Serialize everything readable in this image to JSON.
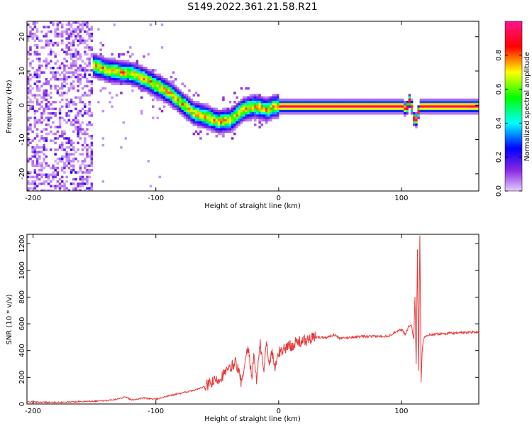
{
  "figure_title": "S149.2022.361.21.58.R21",
  "chart_data": [
    {
      "type": "heatmap",
      "title": "",
      "xlabel": "Height of straight line (km)",
      "ylabel": "Frequency (Hz)",
      "xlim": [
        -205,
        163
      ],
      "ylim": [
        -25,
        24.5
      ],
      "xticks": [
        -200,
        -100,
        0,
        100
      ],
      "yticks": [
        -20,
        -10,
        0,
        10,
        20
      ],
      "colorbar": {
        "label": "Normalized spectral amplitude",
        "range": [
          0.0,
          1.0
        ],
        "ticks": [
          0.0,
          0.2,
          0.4,
          0.6,
          0.8
        ],
        "colormap": [
          "#e6ccff",
          "#8a2be2",
          "#0000ff",
          "#00ffff",
          "#00ff00",
          "#ffff00",
          "#ff0000",
          "#ff1493"
        ]
      },
      "ridge": {
        "x": [
          -152,
          -140,
          -130,
          -120,
          -110,
          -100,
          -90,
          -80,
          -70,
          -60,
          -50,
          -40,
          -30,
          -20,
          -10,
          -5,
          0,
          20,
          40,
          60,
          80,
          95,
          100,
          103,
          106,
          108,
          110,
          112,
          114,
          120,
          140,
          163
        ],
        "frequency": [
          12,
          10.5,
          10,
          9.5,
          8,
          6,
          4,
          1,
          -2,
          -3,
          -4.5,
          -4,
          -1,
          0,
          -1,
          0,
          0,
          0,
          0,
          0,
          0,
          0,
          0,
          -1,
          2,
          -1,
          -5,
          -3,
          0,
          0,
          0,
          0
        ]
      }
    },
    {
      "type": "line",
      "title": "",
      "xlabel": "Height of straight line (km)",
      "ylabel": "SNR (10 * v/v)",
      "xlim": [
        -205,
        163
      ],
      "ylim": [
        0,
        1270
      ],
      "xticks": [
        -200,
        -100,
        0,
        100
      ],
      "yticks": [
        0,
        200,
        400,
        600,
        800,
        1000,
        1200
      ],
      "series": [
        {
          "color": "#e8393a",
          "x": [
            -205,
            -180,
            -160,
            -140,
            -130,
            -125,
            -120,
            -110,
            -100,
            -90,
            -80,
            -70,
            -60,
            -50,
            -45,
            -40,
            -35,
            -30,
            -25,
            -22,
            -20,
            -18,
            -15,
            -12,
            -10,
            -8,
            -5,
            -3,
            0,
            5,
            10,
            15,
            20,
            25,
            30,
            40,
            45,
            50,
            60,
            70,
            80,
            90,
            95,
            100,
            103,
            106,
            108,
            110,
            111,
            112,
            113,
            114,
            115,
            116,
            117,
            118,
            119,
            120,
            125,
            130,
            140,
            150,
            163
          ],
          "y": [
            15,
            12,
            18,
            25,
            40,
            55,
            30,
            45,
            35,
            60,
            80,
            100,
            130,
            180,
            220,
            260,
            320,
            150,
            420,
            200,
            360,
            180,
            450,
            230,
            480,
            320,
            380,
            260,
            380,
            420,
            440,
            460,
            470,
            480,
            500,
            500,
            520,
            490,
            500,
            505,
            505,
            510,
            540,
            560,
            520,
            580,
            600,
            480,
            800,
            300,
            1150,
            250,
            1270,
            170,
            420,
            490,
            500,
            510,
            520,
            525,
            530,
            535,
            540
          ]
        }
      ]
    }
  ]
}
